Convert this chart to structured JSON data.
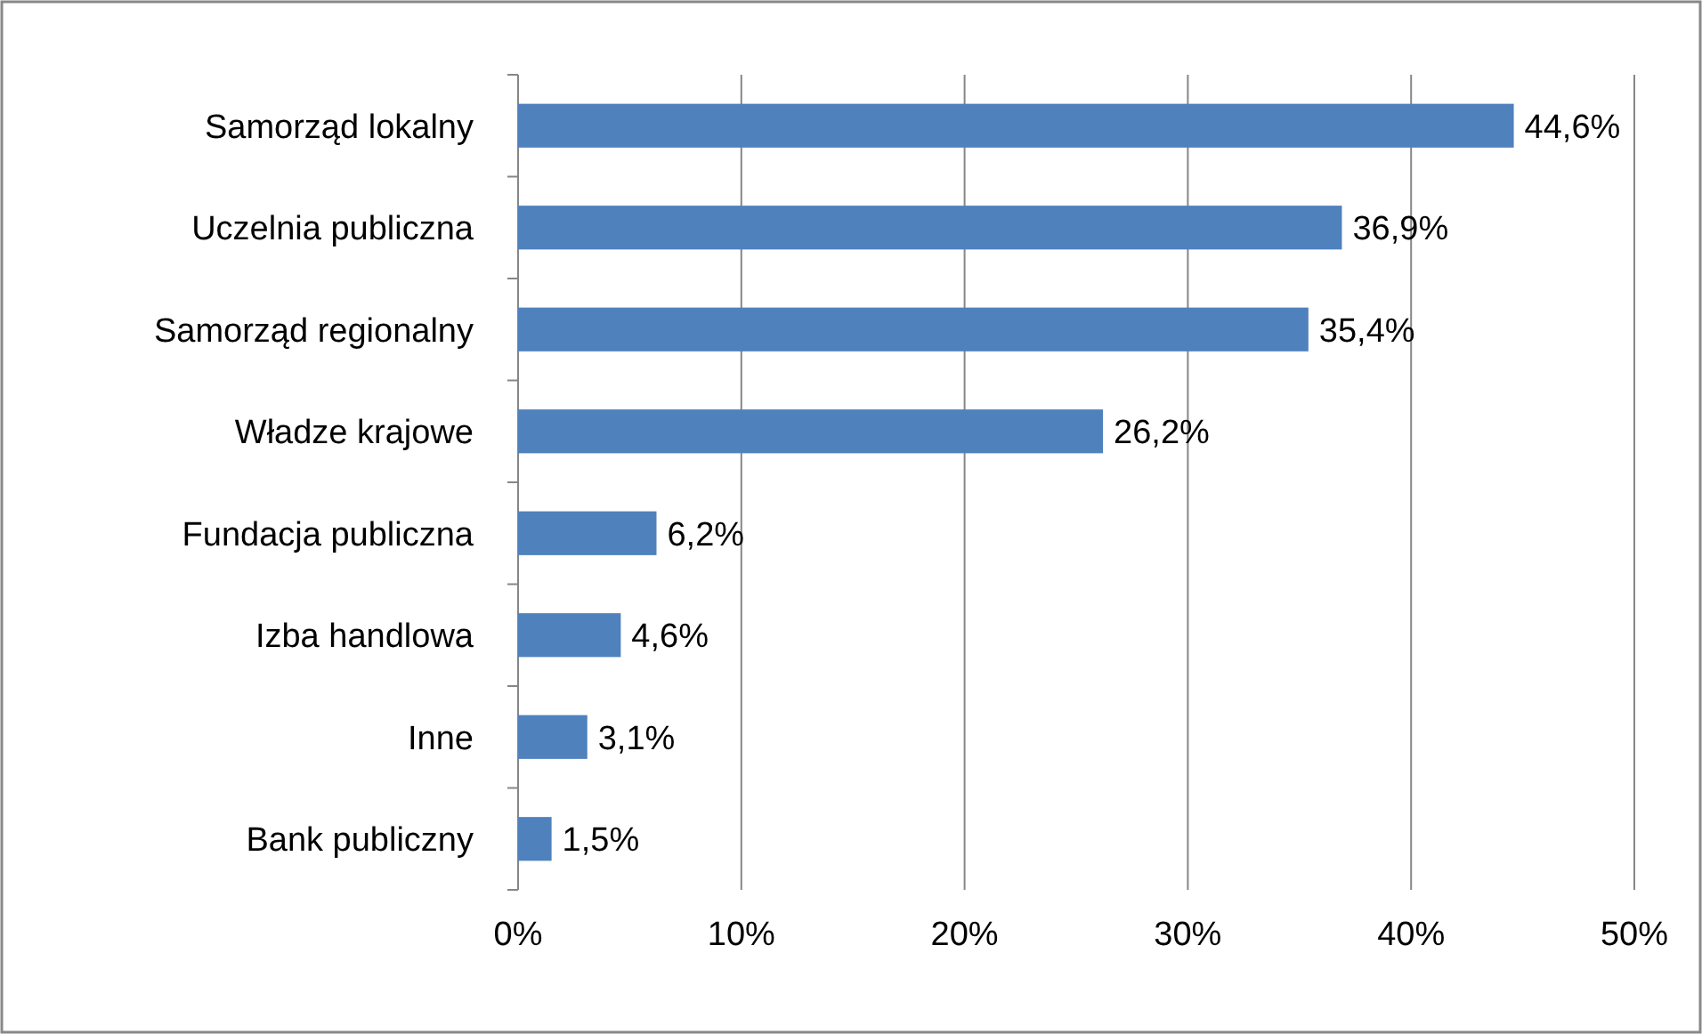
{
  "chart_data": {
    "type": "bar",
    "orientation": "horizontal",
    "categories": [
      "Samorząd lokalny",
      "Uczelnia publiczna",
      "Samorząd regionalny",
      "Władze krajowe",
      "Fundacja publiczna",
      "Izba handlowa",
      "Inne",
      "Bank publiczny"
    ],
    "values": [
      44.6,
      36.9,
      35.4,
      26.2,
      6.2,
      4.6,
      3.1,
      1.5
    ],
    "value_labels": [
      "44,6%",
      "36,9%",
      "35,4%",
      "26,2%",
      "6,2%",
      "4,6%",
      "3,1%",
      "1,5%"
    ],
    "color": "#4f81bd",
    "xlim": [
      0,
      50
    ],
    "xticks": [
      {
        "value": 0,
        "label": "0%"
      },
      {
        "value": 10,
        "label": "10%"
      },
      {
        "value": 20,
        "label": "20%"
      },
      {
        "value": 30,
        "label": "30%"
      },
      {
        "value": 40,
        "label": "40%"
      },
      {
        "value": 50,
        "label": "50%"
      }
    ],
    "grid": "x"
  }
}
